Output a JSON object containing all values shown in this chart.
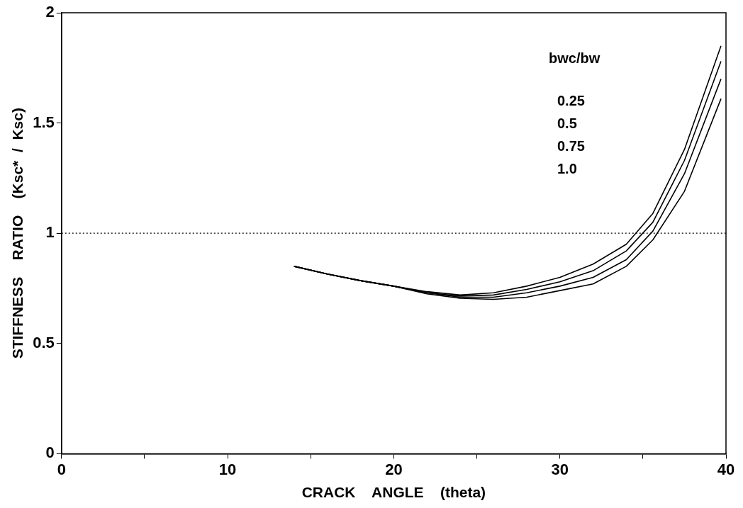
{
  "chart_data": {
    "type": "line",
    "xlabel": "CRACK    ANGLE    (theta)",
    "ylabel": "STIFFNESS    RATIO    (Ksc*  /  Ksc)",
    "marker": "none",
    "line_style": "solid",
    "grid": false,
    "annotations": [
      "bwc/bw",
      "0.25",
      "0.5",
      "0.75",
      "1.0"
    ],
    "x": [
      14,
      16,
      18,
      20,
      22,
      24,
      26,
      28,
      30,
      32,
      34,
      35.6,
      37.5,
      39.7
    ],
    "xlim": [
      0,
      40
    ],
    "xticks": [
      0,
      {
        "value": 5,
        "label": null
      },
      10,
      {
        "value": 15,
        "label": null
      },
      20,
      {
        "value": 25,
        "label": null
      },
      30,
      {
        "value": 35,
        "label": null
      },
      40
    ],
    "ylim": [
      0,
      2
    ],
    "yticks": [
      0,
      0.5,
      1,
      1.5,
      2
    ],
    "series": [
      {
        "color": "#000000",
        "values": [
          0.85,
          0.815,
          0.785,
          0.76,
          0.735,
          0.72,
          0.73,
          0.76,
          0.8,
          0.86,
          0.95,
          1.09,
          1.38,
          1.85
        ]
      },
      {
        "color": "#000000",
        "values": [
          0.85,
          0.815,
          0.785,
          0.76,
          0.73,
          0.715,
          0.72,
          0.745,
          0.78,
          0.83,
          0.92,
          1.05,
          1.33,
          1.78
        ]
      },
      {
        "color": "#000000",
        "values": [
          0.85,
          0.815,
          0.785,
          0.76,
          0.73,
          0.71,
          0.71,
          0.73,
          0.76,
          0.8,
          0.88,
          1.01,
          1.27,
          1.7
        ]
      },
      {
        "color": "#000000",
        "values": [
          0.85,
          0.815,
          0.785,
          0.76,
          0.725,
          0.705,
          0.7,
          0.71,
          0.74,
          0.77,
          0.85,
          0.97,
          1.19,
          1.61
        ]
      }
    ],
    "ref_lines": [
      {
        "axis": "y",
        "value": 1,
        "line_style": "dotted",
        "color": "#000000"
      }
    ]
  }
}
